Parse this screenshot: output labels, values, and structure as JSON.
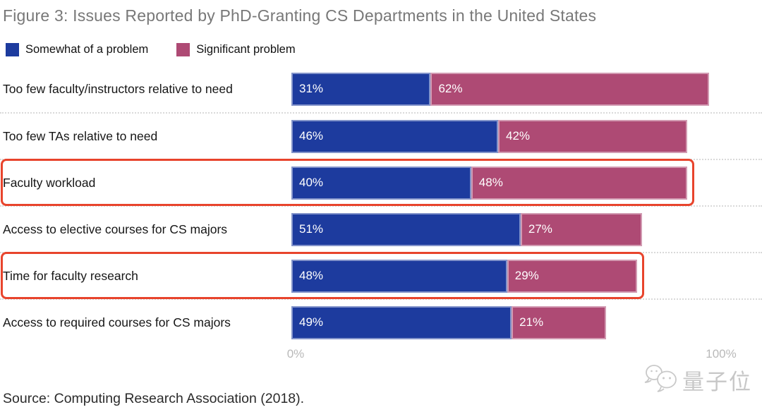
{
  "title": "Figure 3: Issues Reported by PhD-Granting CS Departments in the United States",
  "legend": {
    "items": [
      {
        "label": "Somewhat of a problem",
        "color": "#1d3b9e"
      },
      {
        "label": "Significant problem",
        "color": "#ae4a74"
      }
    ]
  },
  "chart_data": {
    "type": "bar",
    "orientation": "horizontal",
    "stacked": true,
    "title": "Figure 3: Issues Reported by PhD-Granting CS Departments in the United States",
    "categories": [
      "Too few faculty/instructors relative to need",
      "Too few TAs relative to need",
      "Faculty workload",
      "Access to elective courses for CS majors",
      "Time for faculty research",
      "Access to required courses for CS majors"
    ],
    "series": [
      {
        "name": "Somewhat of a problem",
        "color": "#1d3b9e",
        "values": [
          31,
          46,
          40,
          51,
          48,
          49
        ]
      },
      {
        "name": "Significant problem",
        "color": "#ae4a74",
        "values": [
          62,
          42,
          48,
          27,
          29,
          21
        ]
      }
    ],
    "value_suffix": "%",
    "xlim": [
      0,
      100
    ],
    "x_ticks": [
      "0%",
      "100%"
    ],
    "grid": false,
    "legend_position": "top-left",
    "highlighted_rows": [
      "Faculty workload",
      "Time for faculty research"
    ],
    "highlight_color": "#e8442c"
  },
  "axis": {
    "tick_start": "0%",
    "tick_end": "100%"
  },
  "source": "Source: Computing Research Association (2018).",
  "watermark": {
    "text": "量子位"
  }
}
